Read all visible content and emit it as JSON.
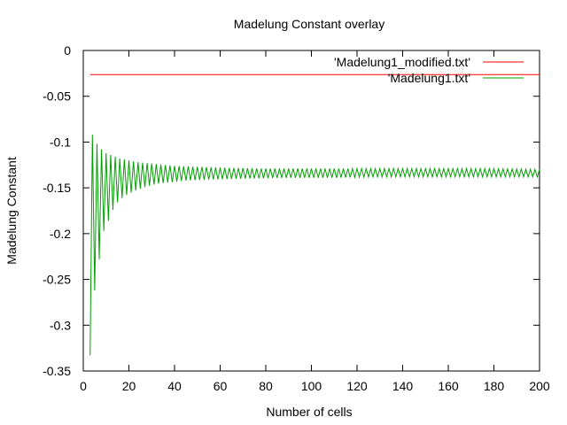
{
  "chart_data": {
    "type": "line",
    "title": "Madelung Constant overlay",
    "xlabel": "Number of cells",
    "ylabel": "Madelung Constant",
    "xlim": [
      0,
      200
    ],
    "ylim": [
      -0.35,
      0
    ],
    "xticks": [
      0,
      20,
      40,
      60,
      80,
      100,
      120,
      140,
      160,
      180,
      200
    ],
    "yticks": [
      0,
      -0.05,
      -0.1,
      -0.15,
      -0.2,
      -0.25,
      -0.3,
      -0.35
    ],
    "xtick_labels": [
      "0",
      "20",
      "40",
      "60",
      "80",
      "100",
      "120",
      "140",
      "160",
      "180",
      "200"
    ],
    "ytick_labels": [
      "0",
      "-0.05",
      "-0.1",
      "-0.15",
      "-0.2",
      "-0.25",
      "-0.3",
      "-0.35"
    ],
    "grid": false,
    "legend_position": "top-right",
    "series": [
      {
        "name": "'Madelung1_modified.txt'",
        "color": "#ff0000",
        "x_range": [
          3,
          200
        ],
        "values": [
          -0.0264
        ]
      },
      {
        "name": "'Madelung1.txt'",
        "color": "#00a000",
        "x": [
          3,
          4,
          5,
          6,
          7,
          8,
          9,
          10,
          11,
          12,
          13,
          14,
          15,
          16,
          18,
          20,
          22,
          24,
          26,
          28,
          30,
          32,
          34,
          36,
          38,
          40,
          45,
          50,
          55,
          60,
          70,
          80,
          90,
          100,
          110,
          120,
          130,
          140,
          150,
          160,
          170,
          180,
          190,
          200
        ],
        "values": [
          -0.333,
          -0.092,
          -0.262,
          -0.102,
          -0.228,
          -0.108,
          -0.197,
          -0.112,
          -0.186,
          -0.114,
          -0.174,
          -0.116,
          -0.166,
          -0.118,
          -0.159,
          -0.12,
          -0.154,
          -0.122,
          -0.15,
          -0.123,
          -0.147,
          -0.124,
          -0.145,
          -0.125,
          -0.144,
          -0.126,
          -0.142,
          -0.127,
          -0.141,
          -0.128,
          -0.14,
          -0.129,
          -0.139,
          -0.129,
          -0.139,
          -0.129,
          -0.138,
          -0.129,
          -0.138,
          -0.129,
          -0.138,
          -0.129,
          -0.138,
          -0.13
        ],
        "oscillation_period_cells": 2
      }
    ]
  }
}
